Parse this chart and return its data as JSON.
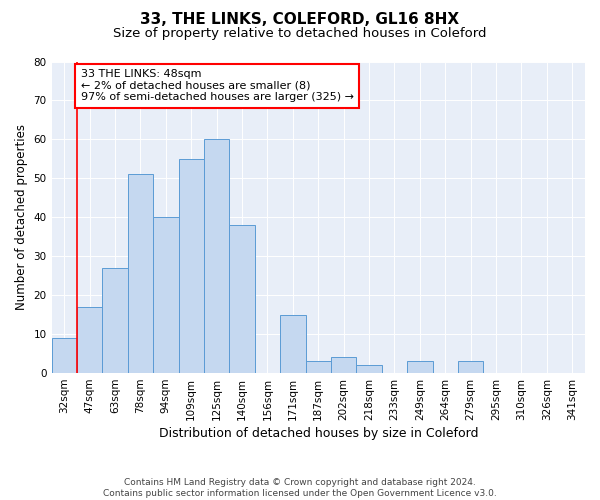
{
  "title": "33, THE LINKS, COLEFORD, GL16 8HX",
  "subtitle": "Size of property relative to detached houses in Coleford",
  "xlabel": "Distribution of detached houses by size in Coleford",
  "ylabel": "Number of detached properties",
  "categories": [
    "32sqm",
    "47sqm",
    "63sqm",
    "78sqm",
    "94sqm",
    "109sqm",
    "125sqm",
    "140sqm",
    "156sqm",
    "171sqm",
    "187sqm",
    "202sqm",
    "218sqm",
    "233sqm",
    "249sqm",
    "264sqm",
    "279sqm",
    "295sqm",
    "310sqm",
    "326sqm",
    "341sqm"
  ],
  "values": [
    9,
    17,
    27,
    51,
    40,
    55,
    60,
    38,
    0,
    15,
    3,
    4,
    2,
    0,
    3,
    0,
    3,
    0,
    0,
    0,
    0
  ],
  "bar_color": "#c5d8f0",
  "bar_edge_color": "#5b9bd5",
  "annotation_text": "33 THE LINKS: 48sqm\n← 2% of detached houses are smaller (8)\n97% of semi-detached houses are larger (325) →",
  "annotation_box_color": "white",
  "annotation_box_edge_color": "red",
  "vline_color": "red",
  "vline_x": 0.5,
  "ylim": [
    0,
    80
  ],
  "yticks": [
    0,
    10,
    20,
    30,
    40,
    50,
    60,
    70,
    80
  ],
  "footnote": "Contains HM Land Registry data © Crown copyright and database right 2024.\nContains public sector information licensed under the Open Government Licence v3.0.",
  "bg_color": "#e8eef8",
  "title_fontsize": 11,
  "subtitle_fontsize": 9.5,
  "xlabel_fontsize": 9,
  "ylabel_fontsize": 8.5,
  "tick_fontsize": 7.5,
  "annotation_fontsize": 8,
  "footnote_fontsize": 6.5
}
